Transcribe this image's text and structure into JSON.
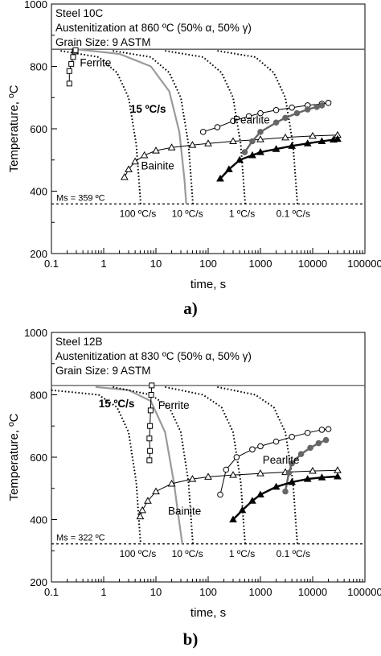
{
  "chart_data": [
    {
      "panel_label": "a)",
      "type": "line",
      "xscale": "log",
      "xlim": [
        0.1,
        100000
      ],
      "ylim": [
        200,
        1000
      ],
      "xlabel": "time, s",
      "ylabel": "Temperature, ºC",
      "xtick_labels": [
        "0.1",
        "1",
        "10",
        "100",
        "1000",
        "10000",
        "100000"
      ],
      "ytick_labels": [
        "200",
        "400",
        "600",
        "800",
        "1000"
      ],
      "info_text": [
        "Steel 10C",
        "Austenitization at 860 ºC (50% α, 50% γ)",
        "Grain Size: 9 ASTM"
      ],
      "ae_temperature": 855,
      "ms": {
        "label": "Ms = 359 ºC",
        "temperature": 359
      },
      "cooling_curves": [
        {
          "label": "100 ºC/s",
          "style": "dotted",
          "points": [
            [
              0.15,
              850
            ],
            [
              0.8,
              830
            ],
            [
              1.8,
              780
            ],
            [
              3.0,
              700
            ],
            [
              4.2,
              550
            ],
            [
              4.8,
              420
            ],
            [
              5.1,
              359
            ]
          ]
        },
        {
          "label": "15 ºC/s",
          "style": "solid-gray",
          "points": [
            [
              0.3,
              855
            ],
            [
              2,
              840
            ],
            [
              8,
              800
            ],
            [
              18,
              720
            ],
            [
              28,
              590
            ],
            [
              35,
              440
            ],
            [
              38,
              359
            ]
          ]
        },
        {
          "label": "10 ºC/s",
          "style": "dotted",
          "points": [
            [
              1.5,
              850
            ],
            [
              8,
              830
            ],
            [
              18,
              780
            ],
            [
              30,
              700
            ],
            [
              42,
              550
            ],
            [
              48,
              420
            ],
            [
              51,
              359
            ]
          ]
        },
        {
          "label": "1 ºC/s",
          "style": "dotted",
          "points": [
            [
              15,
              850
            ],
            [
              80,
              830
            ],
            [
              180,
              780
            ],
            [
              300,
              700
            ],
            [
              420,
              550
            ],
            [
              480,
              420
            ],
            [
              510,
              359
            ]
          ]
        },
        {
          "label": "0.1 ºC/s",
          "style": "dotted",
          "points": [
            [
              150,
              850
            ],
            [
              800,
              830
            ],
            [
              1800,
              780
            ],
            [
              3000,
              700
            ],
            [
              4200,
              550
            ],
            [
              4800,
              420
            ],
            [
              5100,
              359
            ]
          ]
        }
      ],
      "series": [
        {
          "name": "Ferrite",
          "marker": "open-square",
          "points": [
            [
              0.22,
              745
            ],
            [
              0.22,
              785
            ],
            [
              0.24,
              808
            ],
            [
              0.26,
              830
            ],
            [
              0.28,
              848
            ],
            [
              0.29,
              852
            ]
          ]
        },
        {
          "name": "Bainite",
          "marker": "open-triangle",
          "points": [
            [
              2.5,
              445
            ],
            [
              3,
              470
            ],
            [
              4,
              495
            ],
            [
              6,
              515
            ],
            [
              10,
              530
            ],
            [
              20,
              540
            ],
            [
              50,
              548
            ],
            [
              100,
              553
            ],
            [
              300,
              560
            ],
            [
              1000,
              566
            ],
            [
              3000,
              572
            ],
            [
              10000,
              577
            ],
            [
              30000,
              580
            ]
          ]
        },
        {
          "name": "Pearlite",
          "marker": "open-circle",
          "points": [
            [
              80,
              590
            ],
            [
              150,
              605
            ],
            [
              300,
              625
            ],
            [
              600,
              640
            ],
            [
              1000,
              650
            ],
            [
              2000,
              660
            ],
            [
              4000,
              668
            ],
            [
              8000,
              675
            ],
            [
              15000,
              680
            ],
            [
              20000,
              683
            ]
          ]
        },
        {
          "name": "",
          "marker": "filled-circle",
          "points": [
            [
              500,
              525
            ],
            [
              700,
              560
            ],
            [
              1000,
              590
            ],
            [
              2000,
              620
            ],
            [
              3000,
              635
            ],
            [
              5000,
              650
            ],
            [
              8000,
              662
            ],
            [
              12000,
              670
            ],
            [
              15000,
              675
            ]
          ]
        },
        {
          "name": "",
          "marker": "filled-triangle",
          "points": [
            [
              170,
              440
            ],
            [
              250,
              470
            ],
            [
              400,
              500
            ],
            [
              700,
              515
            ],
            [
              1000,
              525
            ],
            [
              2000,
              535
            ],
            [
              4000,
              545
            ],
            [
              8000,
              553
            ],
            [
              15000,
              560
            ],
            [
              25000,
              565
            ],
            [
              30000,
              567
            ]
          ]
        }
      ],
      "annotations": [
        {
          "text": "Ferrite",
          "x": 0.35,
          "y": 800
        },
        {
          "text": "15 ºC/s",
          "x": 3.2,
          "y": 652,
          "color": "#8c8c8c"
        },
        {
          "text": "Pearlite",
          "x": 300,
          "y": 617
        },
        {
          "text": "Bainite",
          "x": 5.2,
          "y": 470
        },
        {
          "text": "100 ºC/s",
          "x": 2.0,
          "y": 317
        },
        {
          "text": "10 ºC/s",
          "x": 20,
          "y": 317
        },
        {
          "text": "1 ºC/s",
          "x": 250,
          "y": 317
        },
        {
          "text": "0.1 ºC/s",
          "x": 2000,
          "y": 317
        }
      ]
    },
    {
      "panel_label": "b)",
      "type": "line",
      "xscale": "log",
      "xlim": [
        0.1,
        100000
      ],
      "ylim": [
        200,
        1000
      ],
      "xlabel": "time, s",
      "ylabel": "Temperature, ºC",
      "xtick_labels": [
        "0.1",
        "1",
        "10",
        "100",
        "1000",
        "10000",
        "100000"
      ],
      "ytick_labels": [
        "200",
        "400",
        "600",
        "800",
        "1000"
      ],
      "info_text": [
        "Steel 12B",
        "Austenitization at 830 ºC (50% α, 50% γ)",
        "Grain Size: 9 ASTM"
      ],
      "ae_temperature": 830,
      "ms": {
        "label": "Ms = 322 ºC",
        "temperature": 322
      },
      "cooling_curves": [
        {
          "label": "100 ºC/s",
          "style": "dotted",
          "points": [
            [
              0.1,
              815
            ],
            [
              0.8,
              800
            ],
            [
              1.8,
              760
            ],
            [
              3.0,
              680
            ],
            [
              4.2,
              520
            ],
            [
              4.8,
              380
            ],
            [
              5.1,
              322
            ]
          ]
        },
        {
          "label": "15 ºC/s",
          "style": "solid-gray",
          "points": [
            [
              0.7,
              825
            ],
            [
              3,
              815
            ],
            [
              8,
              780
            ],
            [
              15,
              680
            ],
            [
              22,
              520
            ],
            [
              28,
              390
            ],
            [
              32,
              322
            ]
          ]
        },
        {
          "label": "10 ºC/s",
          "style": "dotted",
          "points": [
            [
              1.5,
              825
            ],
            [
              8,
              800
            ],
            [
              18,
              760
            ],
            [
              30,
              680
            ],
            [
              42,
              520
            ],
            [
              48,
              380
            ],
            [
              51,
              322
            ]
          ]
        },
        {
          "label": "1 ºC/s",
          "style": "dotted",
          "points": [
            [
              15,
              825
            ],
            [
              80,
              800
            ],
            [
              180,
              760
            ],
            [
              300,
              680
            ],
            [
              420,
              520
            ],
            [
              480,
              380
            ],
            [
              510,
              322
            ]
          ]
        },
        {
          "label": "0.1 ºC/s",
          "style": "dotted",
          "points": [
            [
              150,
              825
            ],
            [
              800,
              800
            ],
            [
              1800,
              760
            ],
            [
              3000,
              680
            ],
            [
              4200,
              520
            ],
            [
              4800,
              380
            ],
            [
              5100,
              322
            ]
          ]
        }
      ],
      "series": [
        {
          "name": "Ferrite",
          "marker": "open-square",
          "points": [
            [
              7.5,
              590
            ],
            [
              7.7,
              620
            ],
            [
              7.5,
              660
            ],
            [
              7.7,
              700
            ],
            [
              7.9,
              750
            ],
            [
              8.1,
              800
            ],
            [
              8.3,
              830
            ]
          ]
        },
        {
          "name": "Bainite",
          "marker": "open-triangle",
          "points": [
            [
              5,
              410
            ],
            [
              5.5,
              430
            ],
            [
              7,
              460
            ],
            [
              10,
              490
            ],
            [
              20,
              515
            ],
            [
              50,
              530
            ],
            [
              100,
              537
            ],
            [
              300,
              543
            ],
            [
              1000,
              548
            ],
            [
              3000,
              552
            ],
            [
              10000,
              556
            ],
            [
              30000,
              558
            ]
          ]
        },
        {
          "name": "Pearlite",
          "marker": "open-circle",
          "points": [
            [
              170,
              480
            ],
            [
              220,
              560
            ],
            [
              350,
              600
            ],
            [
              700,
              625
            ],
            [
              1000,
              635
            ],
            [
              2000,
              650
            ],
            [
              4000,
              665
            ],
            [
              8000,
              678
            ],
            [
              15000,
              688
            ],
            [
              20000,
              690
            ]
          ]
        },
        {
          "name": "",
          "marker": "filled-circle",
          "points": [
            [
              3000,
              490
            ],
            [
              3500,
              550
            ],
            [
              4000,
              580
            ],
            [
              6000,
              610
            ],
            [
              9000,
              630
            ],
            [
              13000,
              645
            ],
            [
              18000,
              655
            ]
          ]
        },
        {
          "name": "",
          "marker": "filled-triangle",
          "points": [
            [
              300,
              400
            ],
            [
              450,
              430
            ],
            [
              700,
              460
            ],
            [
              1000,
              480
            ],
            [
              2000,
              505
            ],
            [
              4000,
              520
            ],
            [
              8000,
              530
            ],
            [
              15000,
              535
            ],
            [
              30000,
              538
            ]
          ]
        }
      ],
      "annotations": [
        {
          "text": "15 ºC/s",
          "x": 0.8,
          "y": 760,
          "color": "#8c8c8c"
        },
        {
          "text": "Ferrite",
          "x": 11,
          "y": 755
        },
        {
          "text": "Pearlite",
          "x": 1100,
          "y": 580
        },
        {
          "text": "Bainite",
          "x": 17,
          "y": 415
        },
        {
          "text": "100 ºC/s",
          "x": 2.0,
          "y": 280
        },
        {
          "text": "10 ºC/s",
          "x": 20,
          "y": 280
        },
        {
          "text": "1 ºC/s",
          "x": 250,
          "y": 280
        },
        {
          "text": "0.1 ºC/s",
          "x": 2000,
          "y": 280
        }
      ]
    }
  ]
}
